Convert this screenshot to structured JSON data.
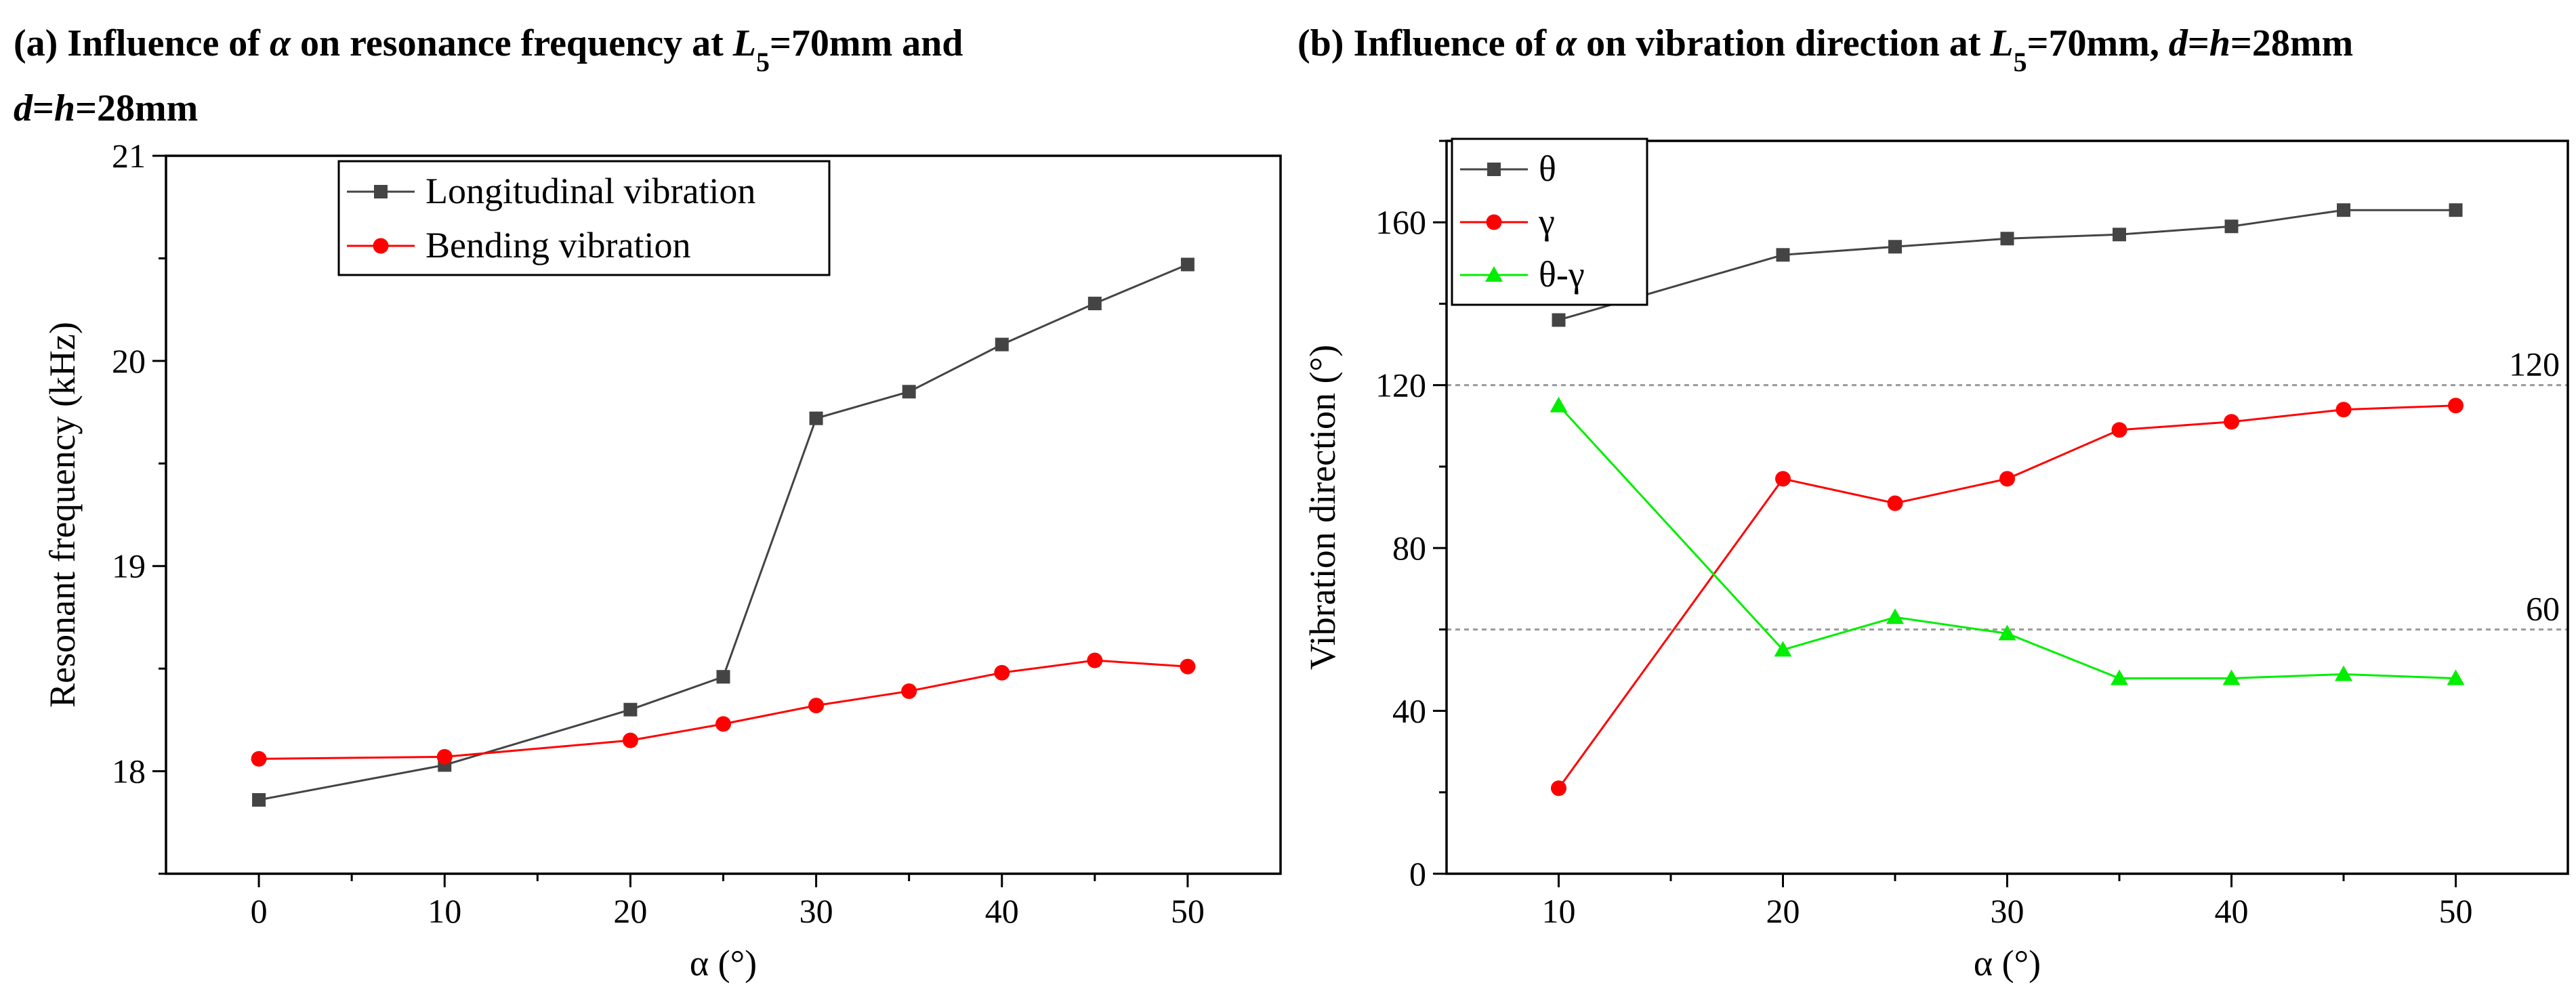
{
  "chart_data": [
    {
      "type": "line",
      "panel_tag": "(a)",
      "title_lines": [
        [
          "Influence of ",
          {
            "i": "α"
          },
          " on resonance frequency at ",
          {
            "i": "L"
          },
          {
            "sub": "5"
          },
          "=70mm and"
        ],
        [
          {
            "i": "d"
          },
          "=",
          {
            "i": "h"
          },
          "=28mm"
        ]
      ],
      "xlabel": "α (°)",
      "ylabel": "Resonant frequency (kHz)",
      "xlim": [
        -5,
        55
      ],
      "ylim": [
        17.5,
        21
      ],
      "xticks": [
        0,
        10,
        20,
        30,
        40,
        50
      ],
      "yticks": [
        18,
        19,
        20,
        21
      ],
      "series": [
        {
          "name": "Longitudinal vibration",
          "color": "#444444",
          "marker": "square",
          "x": [
            0,
            10,
            20,
            25,
            30,
            35,
            40,
            45,
            50
          ],
          "values": [
            17.86,
            18.03,
            18.3,
            18.46,
            19.72,
            19.85,
            20.08,
            20.28,
            20.47
          ]
        },
        {
          "name": "Bending vibration",
          "color": "#ff0000",
          "marker": "circle",
          "x": [
            0,
            10,
            20,
            25,
            30,
            35,
            40,
            45,
            50
          ],
          "values": [
            18.06,
            18.07,
            18.15,
            18.23,
            18.32,
            18.39,
            18.48,
            18.54,
            18.51
          ]
        }
      ],
      "legend": "top-center"
    },
    {
      "type": "line",
      "panel_tag": "(b)",
      "title_lines": [
        [
          "Influence of ",
          {
            "i": "α"
          },
          " on vibration direction at ",
          {
            "i": "L"
          },
          {
            "sub": "5"
          },
          "=70mm, ",
          {
            "i": "d"
          },
          "=",
          {
            "i": "h"
          },
          "=28mm"
        ]
      ],
      "xlabel": "α (°)",
      "ylabel": "Vibration direction (°)",
      "xlim": [
        5,
        55
      ],
      "ylim": [
        0,
        180
      ],
      "xticks": [
        10,
        20,
        30,
        40,
        50
      ],
      "yticks": [
        0,
        40,
        80,
        120,
        160
      ],
      "reference_lines": [
        {
          "y": 120,
          "label": "120"
        },
        {
          "y": 60,
          "label": "60"
        }
      ],
      "series": [
        {
          "name": "θ",
          "color": "#444444",
          "marker": "square",
          "x": [
            10,
            20,
            25,
            30,
            35,
            40,
            45,
            50
          ],
          "values": [
            136,
            152,
            154,
            156,
            157,
            159,
            163,
            163
          ]
        },
        {
          "name": "γ",
          "color": "#ff0000",
          "marker": "circle",
          "x": [
            10,
            20,
            25,
            30,
            35,
            40,
            45,
            50
          ],
          "values": [
            21,
            97,
            91,
            97,
            109,
            111,
            114,
            115
          ]
        },
        {
          "name": "θ-γ",
          "color": "#00ee00",
          "marker": "triangle",
          "x": [
            10,
            20,
            25,
            30,
            35,
            40,
            45,
            50
          ],
          "values": [
            115,
            55,
            63,
            59,
            48,
            48,
            49,
            48
          ]
        }
      ],
      "legend": "top-left"
    }
  ]
}
